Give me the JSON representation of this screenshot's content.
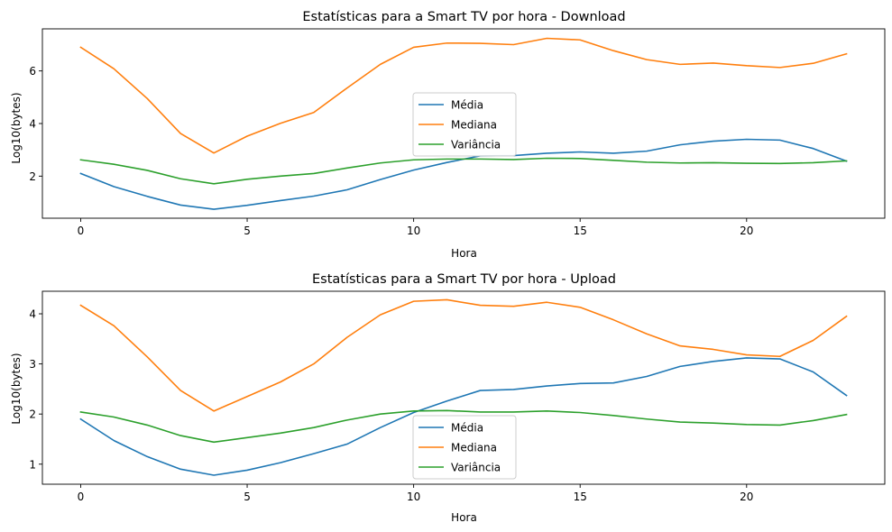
{
  "chart_data": [
    {
      "type": "line",
      "title": "Estatísticas para a Smart TV por hora - Download",
      "xlabel": "Hora",
      "ylabel": "Log10(bytes)",
      "xlim": [
        -1.15,
        24.15
      ],
      "ylim": [
        0.4,
        7.6
      ],
      "xticks": [
        0,
        5,
        10,
        15,
        20
      ],
      "yticks": [
        2,
        4,
        6
      ],
      "grid": false,
      "legend_position": "center",
      "x": [
        0,
        1,
        2,
        3,
        4,
        5,
        6,
        7,
        8,
        9,
        10,
        11,
        12,
        13,
        14,
        15,
        16,
        17,
        18,
        19,
        20,
        21,
        22,
        23
      ],
      "series": [
        {
          "name": "Média",
          "color": "#1f77b4",
          "values": [
            2.1,
            1.6,
            1.23,
            0.9,
            0.74,
            0.89,
            1.07,
            1.24,
            1.48,
            1.87,
            2.23,
            2.52,
            2.77,
            2.78,
            2.87,
            2.92,
            2.87,
            2.95,
            3.19,
            3.33,
            3.4,
            3.37,
            3.05,
            2.57
          ]
        },
        {
          "name": "Mediana",
          "color": "#ff7f0e",
          "values": [
            6.9,
            6.08,
            4.95,
            3.62,
            2.88,
            3.52,
            4.01,
            4.42,
            5.35,
            6.25,
            6.9,
            7.06,
            7.05,
            7.0,
            7.24,
            7.18,
            6.77,
            6.43,
            6.25,
            6.3,
            6.2,
            6.13,
            6.29,
            6.65
          ]
        },
        {
          "name": "Variância",
          "color": "#2ca02c",
          "values": [
            2.62,
            2.45,
            2.22,
            1.9,
            1.71,
            1.88,
            2.0,
            2.1,
            2.31,
            2.5,
            2.62,
            2.65,
            2.65,
            2.63,
            2.68,
            2.67,
            2.6,
            2.53,
            2.5,
            2.51,
            2.49,
            2.48,
            2.51,
            2.58
          ]
        }
      ]
    },
    {
      "type": "line",
      "title": "Estatísticas para a Smart TV por hora - Upload",
      "xlabel": "Hora",
      "ylabel": "Log10(bytes)",
      "xlim": [
        -1.15,
        24.15
      ],
      "ylim": [
        0.6,
        4.45
      ],
      "xticks": [
        0,
        5,
        10,
        15,
        20
      ],
      "yticks": [
        1,
        2,
        3,
        4
      ],
      "grid": false,
      "legend_position": "lower center",
      "x": [
        0,
        1,
        2,
        3,
        4,
        5,
        6,
        7,
        8,
        9,
        10,
        11,
        12,
        13,
        14,
        15,
        16,
        17,
        18,
        19,
        20,
        21,
        22,
        23
      ],
      "series": [
        {
          "name": "Média",
          "color": "#1f77b4",
          "values": [
            1.9,
            1.47,
            1.15,
            0.9,
            0.78,
            0.88,
            1.03,
            1.21,
            1.4,
            1.73,
            2.03,
            2.26,
            2.47,
            2.49,
            2.56,
            2.61,
            2.62,
            2.75,
            2.95,
            3.05,
            3.12,
            3.1,
            2.84,
            2.37
          ]
        },
        {
          "name": "Mediana",
          "color": "#ff7f0e",
          "values": [
            4.17,
            3.76,
            3.14,
            2.47,
            2.06,
            2.35,
            2.64,
            3.0,
            3.53,
            3.98,
            4.25,
            4.28,
            4.17,
            4.15,
            4.23,
            4.13,
            3.88,
            3.6,
            3.36,
            3.29,
            3.18,
            3.15,
            3.47,
            3.95
          ]
        },
        {
          "name": "Variância",
          "color": "#2ca02c",
          "values": [
            2.04,
            1.94,
            1.78,
            1.57,
            1.44,
            1.53,
            1.62,
            1.73,
            1.88,
            2.0,
            2.06,
            2.07,
            2.04,
            2.04,
            2.06,
            2.03,
            1.97,
            1.9,
            1.84,
            1.82,
            1.79,
            1.78,
            1.87,
            1.99
          ]
        }
      ]
    }
  ]
}
